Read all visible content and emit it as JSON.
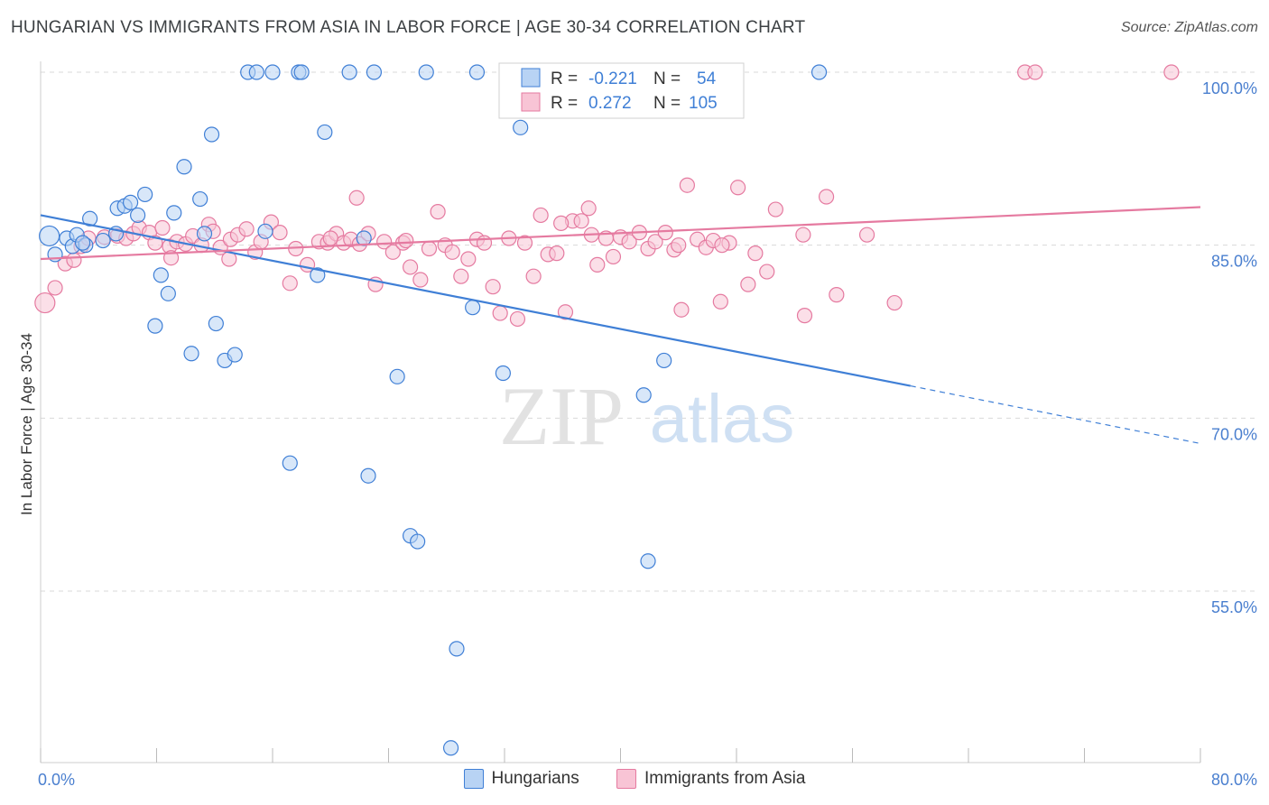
{
  "title": "HUNGARIAN VS IMMIGRANTS FROM ASIA IN LABOR FORCE | AGE 30-34 CORRELATION CHART",
  "source": "Source: ZipAtlas.com",
  "watermark": {
    "zip": "ZIP",
    "atlas": "atlas"
  },
  "colors": {
    "blue": "#3f7fd6",
    "blue_fill": "#b8d3f4",
    "pink": "#e57aa0",
    "pink_fill": "#f8c4d5",
    "axis_label": "#4a7fcf"
  },
  "legend": {
    "r_label": "R =",
    "n_label": "N =",
    "series": [
      {
        "r": "-0.221",
        "n": "54"
      },
      {
        "r": "0.272",
        "n": "105"
      }
    ]
  },
  "chart_data": {
    "type": "scatter",
    "title": "HUNGARIAN VS IMMIGRANTS FROM ASIA IN LABOR FORCE | AGE 30-34 CORRELATION CHART",
    "xlabel": "",
    "ylabel": "In Labor Force | Age 30-34",
    "xlim": [
      0,
      80
    ],
    "ylim": [
      40,
      102
    ],
    "x_tick_labels": [
      "0.0%",
      "80.0%"
    ],
    "y_ticks": [
      {
        "value": 55,
        "label": "55.0%"
      },
      {
        "value": 70,
        "label": "70.0%"
      },
      {
        "value": 85,
        "label": "85.0%"
      },
      {
        "value": 100,
        "label": "100.0%"
      }
    ],
    "series": [
      {
        "name": "Hungarians",
        "color": "#3f7fd6",
        "trend": {
          "x0": 0,
          "y0": 87.6,
          "x1": 60,
          "y1": 72.8,
          "dash_to_x": 80,
          "dash_to_y": 67.8
        },
        "points": [
          [
            0.6,
            85.8
          ],
          [
            1.8,
            85.6
          ],
          [
            2.2,
            84.9
          ],
          [
            2.5,
            85.9
          ],
          [
            3.1,
            85.0
          ],
          [
            3.4,
            87.3
          ],
          [
            4.3,
            85.4
          ],
          [
            5.2,
            86.0
          ],
          [
            5.3,
            88.2
          ],
          [
            5.8,
            88.4
          ],
          [
            6.2,
            88.7
          ],
          [
            6.7,
            87.6
          ],
          [
            7.2,
            89.4
          ],
          [
            7.9,
            78.0
          ],
          [
            8.3,
            82.4
          ],
          [
            8.8,
            80.8
          ],
          [
            9.2,
            87.8
          ],
          [
            9.9,
            91.8
          ],
          [
            10.4,
            75.6
          ],
          [
            11.0,
            89.0
          ],
          [
            11.3,
            86.0
          ],
          [
            11.8,
            94.6
          ],
          [
            12.1,
            78.2
          ],
          [
            12.7,
            75.0
          ],
          [
            13.4,
            75.5
          ],
          [
            14.3,
            100.0
          ],
          [
            14.9,
            100.0
          ],
          [
            15.5,
            86.2
          ],
          [
            16.0,
            100.0
          ],
          [
            17.2,
            66.1
          ],
          [
            17.8,
            100.0
          ],
          [
            18.0,
            100.0
          ],
          [
            19.1,
            82.4
          ],
          [
            19.6,
            94.8
          ],
          [
            21.3,
            100.0
          ],
          [
            22.3,
            85.6
          ],
          [
            22.6,
            65.0
          ],
          [
            23.0,
            100.0
          ],
          [
            24.6,
            73.6
          ],
          [
            25.5,
            59.8
          ],
          [
            26.0,
            59.3
          ],
          [
            26.6,
            100.0
          ],
          [
            28.3,
            41.4
          ],
          [
            28.7,
            50.0
          ],
          [
            29.8,
            79.6
          ],
          [
            30.1,
            100.0
          ],
          [
            31.9,
            73.9
          ],
          [
            33.1,
            95.2
          ],
          [
            41.6,
            72.0
          ],
          [
            41.9,
            57.6
          ],
          [
            43.0,
            75.0
          ],
          [
            53.7,
            100.0
          ],
          [
            1.0,
            84.2
          ],
          [
            2.9,
            85.2
          ]
        ]
      },
      {
        "name": "Immigrants from Asia",
        "color": "#e57aa0",
        "trend": {
          "x0": 0,
          "y0": 83.8,
          "x1": 80,
          "y1": 88.3
        },
        "points": [
          [
            0.3,
            80.0
          ],
          [
            1.0,
            81.3
          ],
          [
            1.7,
            83.4
          ],
          [
            2.3,
            83.7
          ],
          [
            2.8,
            84.9
          ],
          [
            3.3,
            85.6
          ],
          [
            4.4,
            85.7
          ],
          [
            5.3,
            85.8
          ],
          [
            5.9,
            85.6
          ],
          [
            6.4,
            86.0
          ],
          [
            6.8,
            86.5
          ],
          [
            7.5,
            86.1
          ],
          [
            7.9,
            85.2
          ],
          [
            8.4,
            86.5
          ],
          [
            8.9,
            84.9
          ],
          [
            9.4,
            85.3
          ],
          [
            10.0,
            85.1
          ],
          [
            10.5,
            85.8
          ],
          [
            11.1,
            85.0
          ],
          [
            11.6,
            86.8
          ],
          [
            11.9,
            86.2
          ],
          [
            12.4,
            84.8
          ],
          [
            13.1,
            85.5
          ],
          [
            13.6,
            85.9
          ],
          [
            14.2,
            86.4
          ],
          [
            14.8,
            84.4
          ],
          [
            15.2,
            85.3
          ],
          [
            15.9,
            87.0
          ],
          [
            16.5,
            86.1
          ],
          [
            17.2,
            81.7
          ],
          [
            17.6,
            84.7
          ],
          [
            18.4,
            83.3
          ],
          [
            19.2,
            85.3
          ],
          [
            19.8,
            85.2
          ],
          [
            20.4,
            86.0
          ],
          [
            20.9,
            85.2
          ],
          [
            21.4,
            85.5
          ],
          [
            22.0,
            85.1
          ],
          [
            22.6,
            86.0
          ],
          [
            23.1,
            81.6
          ],
          [
            23.7,
            85.3
          ],
          [
            24.3,
            84.4
          ],
          [
            25.0,
            85.2
          ],
          [
            25.5,
            83.1
          ],
          [
            26.2,
            82.0
          ],
          [
            26.8,
            84.7
          ],
          [
            27.4,
            87.9
          ],
          [
            27.9,
            85.0
          ],
          [
            28.4,
            84.4
          ],
          [
            29.0,
            82.3
          ],
          [
            29.5,
            83.8
          ],
          [
            30.1,
            85.5
          ],
          [
            30.6,
            85.2
          ],
          [
            31.2,
            81.4
          ],
          [
            31.7,
            79.1
          ],
          [
            32.3,
            85.6
          ],
          [
            32.9,
            78.6
          ],
          [
            33.4,
            85.2
          ],
          [
            34.0,
            82.3
          ],
          [
            34.5,
            87.6
          ],
          [
            35.0,
            84.2
          ],
          [
            35.6,
            84.3
          ],
          [
            36.2,
            79.2
          ],
          [
            36.7,
            87.1
          ],
          [
            37.3,
            87.1
          ],
          [
            37.8,
            88.2
          ],
          [
            38.4,
            83.3
          ],
          [
            39.0,
            85.6
          ],
          [
            39.5,
            84.0
          ],
          [
            40.0,
            85.7
          ],
          [
            40.6,
            85.3
          ],
          [
            41.3,
            86.1
          ],
          [
            41.9,
            84.7
          ],
          [
            42.4,
            85.3
          ],
          [
            43.1,
            86.1
          ],
          [
            43.7,
            84.6
          ],
          [
            44.2,
            79.4
          ],
          [
            44.6,
            90.2
          ],
          [
            45.3,
            85.5
          ],
          [
            45.9,
            84.8
          ],
          [
            46.4,
            85.4
          ],
          [
            46.9,
            80.1
          ],
          [
            47.5,
            85.2
          ],
          [
            48.1,
            90.0
          ],
          [
            48.8,
            81.6
          ],
          [
            49.3,
            84.3
          ],
          [
            50.1,
            82.7
          ],
          [
            50.7,
            88.1
          ],
          [
            52.6,
            85.9
          ],
          [
            52.7,
            78.9
          ],
          [
            54.2,
            89.2
          ],
          [
            54.9,
            80.7
          ],
          [
            57.0,
            85.9
          ],
          [
            58.9,
            80.0
          ],
          [
            67.9,
            100.0
          ],
          [
            68.6,
            100.0
          ],
          [
            78.0,
            100.0
          ],
          [
            9.0,
            83.9
          ],
          [
            20.0,
            85.6
          ],
          [
            25.2,
            85.4
          ],
          [
            38.0,
            85.9
          ],
          [
            44.0,
            85.0
          ],
          [
            35.9,
            86.9
          ],
          [
            47.0,
            85.0
          ],
          [
            21.8,
            89.1
          ],
          [
            13.0,
            83.8
          ]
        ]
      }
    ]
  },
  "bottom_legend": {
    "blue_label": "Hungarians",
    "pink_label": "Immigrants from Asia"
  }
}
